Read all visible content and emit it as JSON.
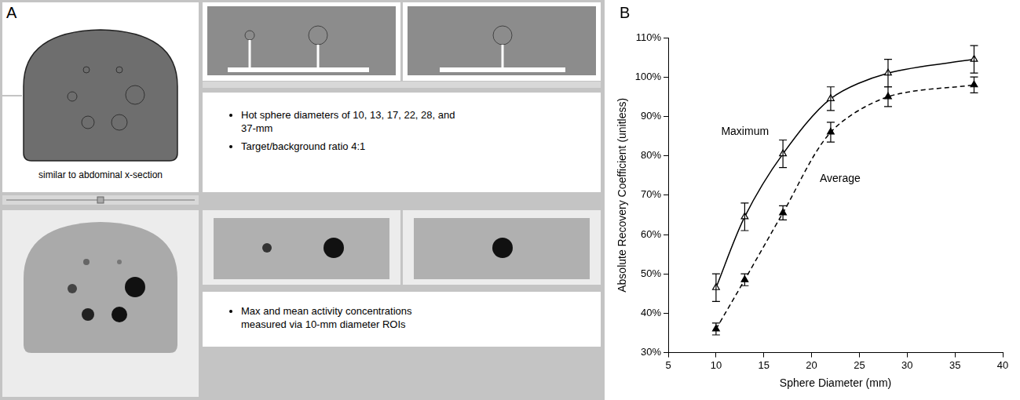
{
  "panel_a": {
    "label": "A",
    "caption": "similar to abdominal x-section",
    "phantom_notes": [
      "Hot sphere diameters of 10, 13, 17, 22, 28, and 37-mm",
      "Target/background ratio 4:1"
    ],
    "measurement_notes": [
      "Max and mean activity concentrations measured via 10-mm diameter ROIs"
    ]
  },
  "chart_data": {
    "type": "line",
    "panel_label": "B",
    "x_label": "Sphere Diameter (mm)",
    "y_label": "Absolute Recovery Coefficient (unitless)",
    "x": [
      10,
      13,
      17,
      22,
      28,
      37
    ],
    "xlim": [
      5,
      40
    ],
    "xticks": [
      5,
      10,
      15,
      20,
      25,
      30,
      35,
      40
    ],
    "ylim": [
      30,
      110
    ],
    "yticks": [
      {
        "value": 30,
        "label": "30%"
      },
      {
        "value": 40,
        "label": "40%"
      },
      {
        "value": 50,
        "label": "50%"
      },
      {
        "value": 60,
        "label": "60%"
      },
      {
        "value": 70,
        "label": "70%"
      },
      {
        "value": 80,
        "label": "80%"
      },
      {
        "value": 90,
        "label": "90%"
      },
      {
        "value": 100,
        "label": "100%"
      },
      {
        "value": 110,
        "label": "110%"
      }
    ],
    "grid": false,
    "series": [
      {
        "name": "Maximum",
        "color": "#000000",
        "marker": "triangle-open",
        "line_style": "solid",
        "values": [
          46.5,
          64.5,
          80.5,
          94.5,
          101,
          104.5
        ],
        "errors": [
          3.5,
          3.5,
          3.5,
          3,
          3.5,
          3.5
        ]
      },
      {
        "name": "Average",
        "color": "#000000",
        "marker": "triangle",
        "line_style": "dashed",
        "values": [
          36,
          48.5,
          65.5,
          86,
          95,
          98
        ],
        "errors": [
          1.5,
          1.5,
          1.8,
          2.5,
          2.5,
          2
        ]
      }
    ]
  }
}
